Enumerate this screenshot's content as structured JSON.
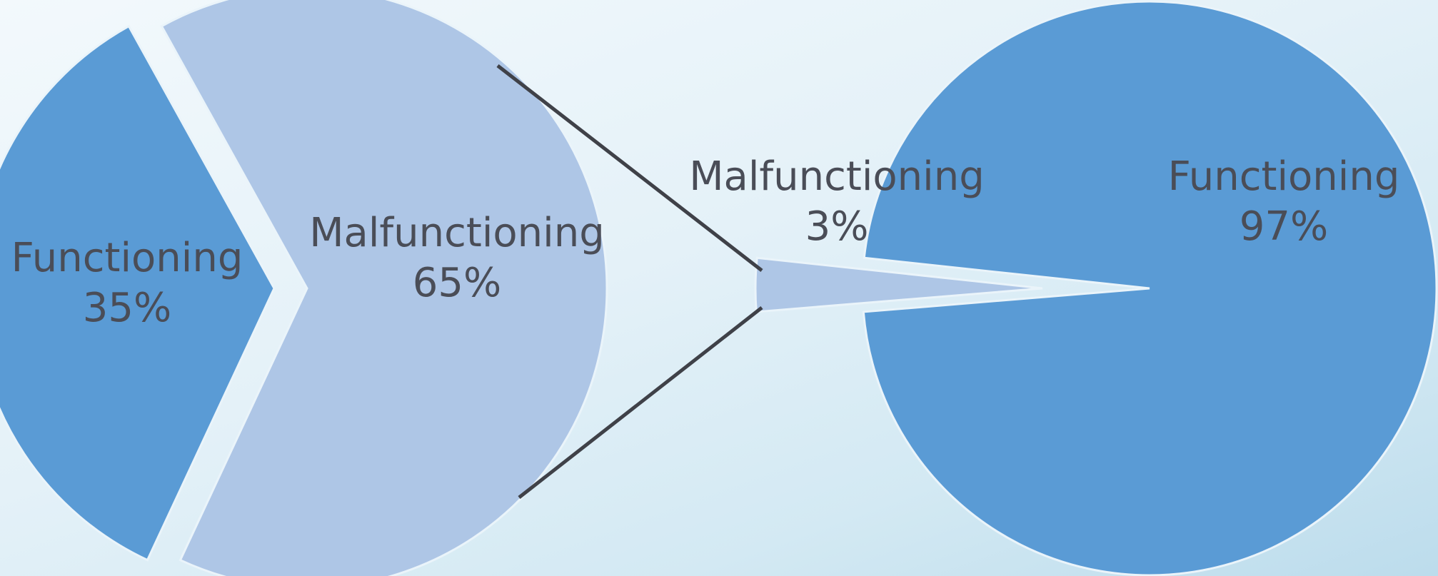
{
  "chart_data": [
    {
      "type": "pie",
      "slices": [
        {
          "label": "Functioning",
          "value": 35,
          "value_label": "35%",
          "color": "#5a9bd5"
        },
        {
          "label": "Malfunctioning",
          "value": 65,
          "value_label": "65%",
          "color": "#aec6e6"
        }
      ]
    },
    {
      "type": "pie",
      "slices": [
        {
          "label": "Malfunctioning",
          "value": 3,
          "value_label": "3%",
          "color": "#aec6e6"
        },
        {
          "label": "Functioning",
          "value": 97,
          "value_label": "97%",
          "color": "#5a9bd5"
        }
      ]
    }
  ]
}
